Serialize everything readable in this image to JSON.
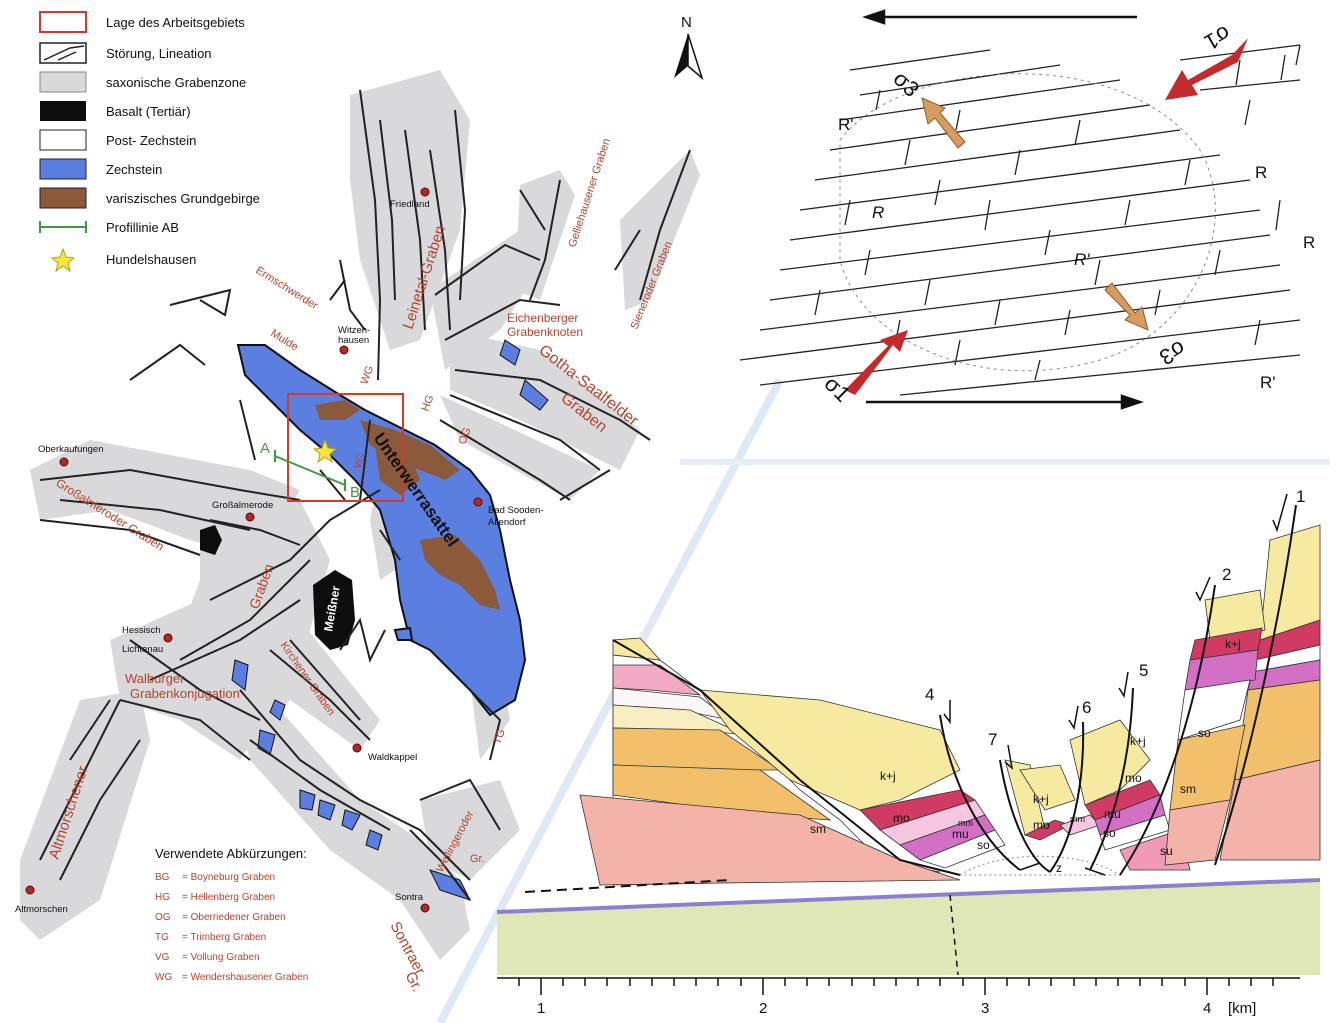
{
  "legend": {
    "items": [
      {
        "label": "Lage des Arbeitsgebiets",
        "swatch": "frame",
        "color": "#d23a2e"
      },
      {
        "label": "Störung, Lineation",
        "swatch": "fault",
        "color": "#222222"
      },
      {
        "label": "saxonische Grabenzone",
        "swatch": "fill",
        "color": "#d9d9dc"
      },
      {
        "label": "Basalt (Tertiär)",
        "swatch": "fill",
        "color": "#0d0d0d"
      },
      {
        "label": "Post- Zechstein",
        "swatch": "fill",
        "color": "#ffffff"
      },
      {
        "label": "Zechstein",
        "swatch": "fill",
        "color": "#5b7fe0"
      },
      {
        "label": "variszisches Grundgebirge",
        "swatch": "fill",
        "color": "#8a5a3a"
      },
      {
        "label": "Profillinie AB",
        "swatch": "line",
        "color": "#3f9a3f"
      },
      {
        "label": "Hundelshausen",
        "swatch": "star",
        "color": "#f5e43a"
      }
    ]
  },
  "north": "N",
  "map_labels": {
    "towns": [
      "Friedland",
      "Witzen-",
      "hausen",
      "Oberkaufungen",
      "Großalmerode",
      "Bad Sooden-",
      "Allendorf",
      "Hessisch",
      "Lichtenau",
      "Waldkappel",
      "Sontra",
      "Altmorschen"
    ],
    "structures": [
      "Leinetal-Graben",
      "Gelliehausener Graben",
      "Sieneroder Graben",
      "Ermschwerder",
      "Mulde",
      "Eichenberger",
      "Grabenknoten",
      "Gotha-Saalfelder",
      "Graben",
      "Großalmeroder Graben",
      "Graben",
      "Walburger",
      "Grabenkonjugation",
      "Kirchener Graben",
      "Altmorschener",
      "Wellingeroder",
      "Gr.",
      "Sontraer",
      "Gr.",
      "Unterwerrasattel",
      "Meißner"
    ],
    "abbrev_tags": [
      "WG",
      "HG",
      "OG",
      "VG",
      "TG"
    ],
    "profile_ends": [
      "A",
      "B"
    ]
  },
  "abbreviations": {
    "heading": "Verwendete Abkürzungen:",
    "items": [
      {
        "code": "BG",
        "text": "= Boyneburg Graben"
      },
      {
        "code": "HG",
        "text": "= Hellenberg Graben"
      },
      {
        "code": "OG",
        "text": "= Oberriedener Graben"
      },
      {
        "code": "TG",
        "text": "= Trimberg Graben"
      },
      {
        "code": "VG",
        "text": "= Vollung Graben"
      },
      {
        "code": "WG",
        "text": "= Wendershausener Graben"
      }
    ]
  },
  "stress": {
    "sigma1": "σ1",
    "sigma3": "σ3",
    "shear_labels": [
      "R'",
      "R",
      "R",
      "R'",
      "R'"
    ]
  },
  "section": {
    "fault_numbers": [
      "1",
      "2",
      "4",
      "5",
      "6",
      "7"
    ],
    "units": [
      "k+j",
      "k+j",
      "k+j",
      "k+j",
      "so",
      "sm",
      "sm",
      "mo",
      "mo",
      "mo",
      "mm",
      "mm",
      "mu",
      "mu",
      "so",
      "so",
      "su",
      "z"
    ],
    "scale": [
      "1",
      "2",
      "3",
      "4"
    ],
    "scale_unit": "[km]"
  },
  "colors": {
    "graben": "#d9d9dc",
    "zechstein": "#5b7fe0",
    "basement": "#8a5a3a",
    "basalt": "#0d0d0d",
    "label_red": "#b5432b",
    "arrow_red": "#c32a2a",
    "arrow_tan": "#d79b5e",
    "km_yellow": "#f6e9a0",
    "so_pink": "#f2a9c3",
    "mo_red": "#d03a63",
    "mm_pink": "#f4c6e0",
    "mu_violet": "#d36fc5",
    "sm_salmon": "#f3b3a8",
    "su_pink": "#f19ab8",
    "ochre": "#f2c06a",
    "basement_green": "#dfe7b7"
  }
}
